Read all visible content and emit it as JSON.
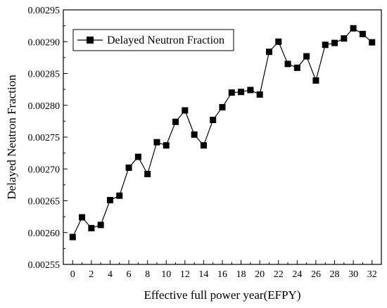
{
  "chart_data": {
    "type": "line",
    "title": "",
    "xlabel": "Effective full power year(EFPY)",
    "ylabel": "Delayed Neutron Fraction",
    "xlim": [
      -1,
      33
    ],
    "ylim": [
      0.00255,
      0.00295
    ],
    "x_ticks": [
      "0",
      "2",
      "4",
      "6",
      "8",
      "10",
      "12",
      "14",
      "16",
      "18",
      "20",
      "22",
      "24",
      "26",
      "28",
      "30",
      "32"
    ],
    "y_ticks": [
      "0.00255",
      "0.00260",
      "0.00265",
      "0.00270",
      "0.00275",
      "0.00280",
      "0.00285",
      "0.00290",
      "0.00295"
    ],
    "grid": false,
    "legend_position": "top-left",
    "series": [
      {
        "name": "Delayed Neutron Fraction",
        "color": "#000000",
        "marker": "square",
        "x": [
          0,
          1,
          2,
          3,
          4,
          5,
          6,
          7,
          8,
          9,
          10,
          11,
          12,
          13,
          14,
          15,
          16,
          17,
          18,
          19,
          20,
          21,
          22,
          23,
          24,
          25,
          26,
          27,
          28,
          29,
          30,
          31,
          32
        ],
        "y": [
          0.002593,
          0.002624,
          0.002607,
          0.002612,
          0.002651,
          0.002658,
          0.002702,
          0.002719,
          0.002692,
          0.002742,
          0.002737,
          0.002774,
          0.002792,
          0.002754,
          0.002737,
          0.002777,
          0.002797,
          0.00282,
          0.002821,
          0.002824,
          0.002817,
          0.002884,
          0.0029,
          0.002865,
          0.002859,
          0.002877,
          0.002839,
          0.002895,
          0.002898,
          0.002905,
          0.002921,
          0.002912,
          0.002899
        ]
      }
    ]
  }
}
